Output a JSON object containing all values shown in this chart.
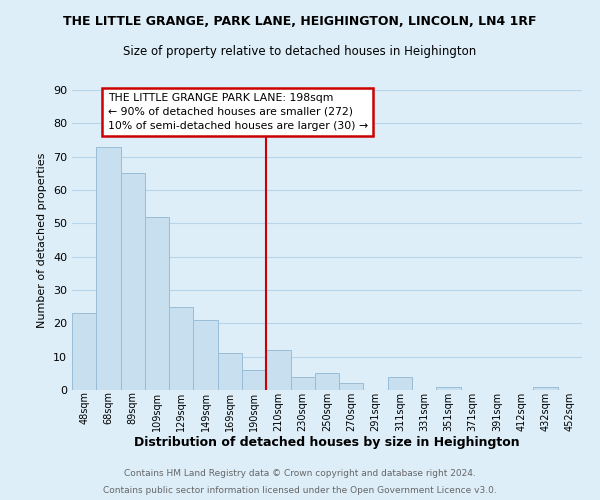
{
  "title": "THE LITTLE GRANGE, PARK LANE, HEIGHINGTON, LINCOLN, LN4 1RF",
  "subtitle": "Size of property relative to detached houses in Heighington",
  "xlabel": "Distribution of detached houses by size in Heighington",
  "ylabel": "Number of detached properties",
  "bar_labels": [
    "48sqm",
    "68sqm",
    "89sqm",
    "109sqm",
    "129sqm",
    "149sqm",
    "169sqm",
    "190sqm",
    "210sqm",
    "230sqm",
    "250sqm",
    "270sqm",
    "291sqm",
    "311sqm",
    "331sqm",
    "351sqm",
    "371sqm",
    "391sqm",
    "412sqm",
    "432sqm",
    "452sqm"
  ],
  "bar_values": [
    23,
    73,
    65,
    52,
    25,
    21,
    11,
    6,
    12,
    4,
    5,
    2,
    0,
    4,
    0,
    1,
    0,
    0,
    0,
    1,
    0
  ],
  "bar_color": "#c8dff0",
  "bar_edge_color": "#99bcd8",
  "grid_color": "#b8d4e8",
  "background_color": "#ddeef8",
  "vline_x": 7.5,
  "vline_color": "#cc0000",
  "ylim": [
    0,
    90
  ],
  "yticks": [
    0,
    10,
    20,
    30,
    40,
    50,
    60,
    70,
    80,
    90
  ],
  "annotation_title": "THE LITTLE GRANGE PARK LANE: 198sqm",
  "annotation_line1": "← 90% of detached houses are smaller (272)",
  "annotation_line2": "10% of semi-detached houses are larger (30) →",
  "footer1": "Contains HM Land Registry data © Crown copyright and database right 2024.",
  "footer2": "Contains public sector information licensed under the Open Government Licence v3.0."
}
